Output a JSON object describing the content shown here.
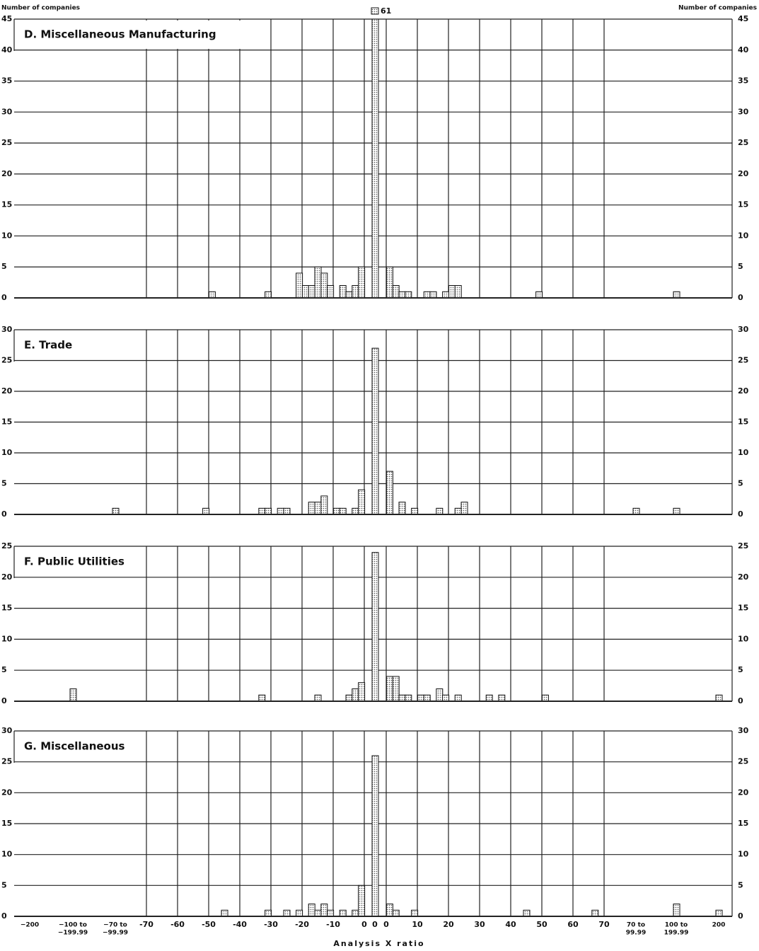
{
  "y_label": "Number of companies",
  "x_axis": {
    "label": "Analysis X ratio",
    "outer_left_labels": [
      [
        "−200"
      ],
      [
        "−100 to",
        "−199.99"
      ],
      [
        "−70 to",
        "−99.99"
      ]
    ],
    "negative_ticks": [
      -70,
      -60,
      -50,
      -40,
      -30,
      -20,
      -10,
      0
    ],
    "zero_label": "0",
    "positive_ticks": [
      0,
      10,
      20,
      30,
      40,
      50,
      60,
      70
    ],
    "outer_right_labels": [
      [
        "70 to",
        "99.99"
      ],
      [
        "100 to",
        "199.99"
      ],
      [
        "200"
      ]
    ]
  },
  "chart_data": [
    {
      "type": "histogram",
      "title": "D.  Miscellaneous Manufacturing",
      "ylim": [
        0,
        45
      ],
      "yticks": [
        0,
        5,
        10,
        15,
        20,
        25,
        30,
        35,
        40,
        45
      ],
      "outer_left": [
        0,
        0,
        0
      ],
      "negative": {
        "x": [
          -49,
          -31,
          -21,
          -19,
          -17,
          -15,
          -13,
          -11,
          -7,
          -5,
          -3,
          -1
        ],
        "values": [
          1,
          1,
          4,
          2,
          2,
          5,
          4,
          2,
          2,
          1,
          2,
          5
        ]
      },
      "zero": {
        "value": 61,
        "value_label": "61"
      },
      "positive": {
        "x": [
          1,
          3,
          5,
          7,
          13,
          15,
          19,
          21,
          23,
          49
        ],
        "values": [
          5,
          2,
          1,
          1,
          1,
          1,
          1,
          2,
          2,
          1
        ]
      },
      "outer_right": [
        0,
        1,
        0
      ]
    },
    {
      "type": "histogram",
      "title": "E.  Trade",
      "ylim": [
        0,
        30
      ],
      "yticks": [
        0,
        5,
        10,
        15,
        20,
        25,
        30
      ],
      "outer_left": [
        0,
        0,
        1
      ],
      "negative": {
        "x": [
          -51,
          -33,
          -31,
          -27,
          -25,
          -17,
          -15,
          -13,
          -9,
          -7,
          -3,
          -1
        ],
        "values": [
          1,
          1,
          1,
          1,
          1,
          2,
          2,
          3,
          1,
          1,
          1,
          4
        ]
      },
      "zero": {
        "value": 27
      },
      "positive": {
        "x": [
          1,
          5,
          9,
          17,
          23,
          25
        ],
        "values": [
          7,
          2,
          1,
          1,
          1,
          2
        ]
      },
      "outer_right": [
        1,
        1,
        0
      ]
    },
    {
      "type": "histogram",
      "title": "F.  Public Utilities",
      "ylim": [
        0,
        25
      ],
      "yticks": [
        0,
        5,
        10,
        15,
        20,
        25
      ],
      "outer_left": [
        0,
        2,
        0
      ],
      "negative": {
        "x": [
          -33,
          -15,
          -5,
          -3,
          -1
        ],
        "values": [
          1,
          1,
          1,
          2,
          3
        ]
      },
      "zero": {
        "value": 24
      },
      "positive": {
        "x": [
          1,
          3,
          5,
          7,
          11,
          13,
          17,
          19,
          23,
          33,
          37,
          51
        ],
        "values": [
          4,
          4,
          1,
          1,
          1,
          1,
          2,
          1,
          1,
          1,
          1,
          1
        ]
      },
      "outer_right": [
        0,
        0,
        1
      ]
    },
    {
      "type": "histogram",
      "title": "G.  Miscellaneous",
      "ylim": [
        0,
        30
      ],
      "yticks": [
        0,
        5,
        10,
        15,
        20,
        25,
        30
      ],
      "outer_left": [
        0,
        0,
        0
      ],
      "negative": {
        "x": [
          -45,
          -31,
          -25,
          -21,
          -17,
          -15,
          -13,
          -11,
          -7,
          -3,
          -1
        ],
        "values": [
          1,
          1,
          1,
          1,
          2,
          1,
          2,
          1,
          1,
          1,
          5
        ]
      },
      "zero": {
        "value": 26
      },
      "positive": {
        "x": [
          1,
          3,
          9,
          45,
          67
        ],
        "values": [
          2,
          1,
          1,
          1,
          1
        ]
      },
      "outer_right": [
        0,
        2,
        1
      ]
    }
  ]
}
